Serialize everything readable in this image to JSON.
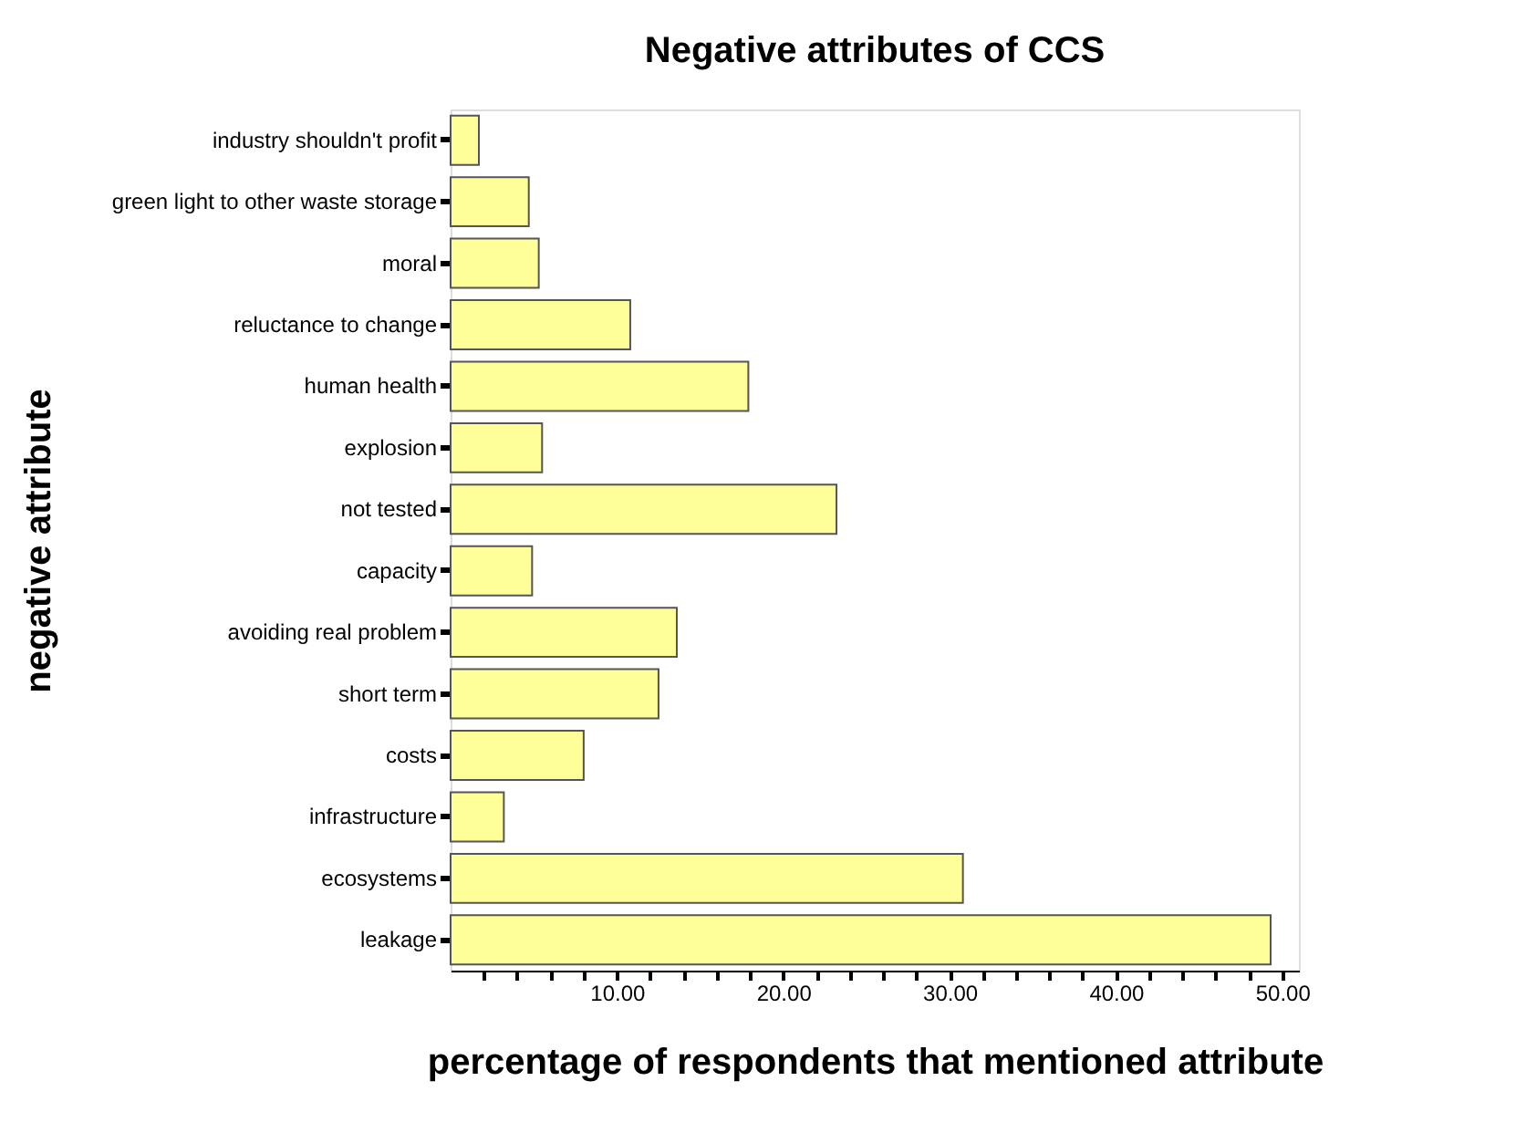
{
  "chart_data": {
    "type": "bar",
    "orientation": "horizontal",
    "title": "Negative attributes of CCS",
    "xlabel": "percentage of respondents that mentioned attribute",
    "ylabel": "negative attribute",
    "categories": [
      "industry shouldn't profit",
      "green light to other waste storage",
      "moral",
      "reluctance to change",
      "human health",
      "explosion",
      "not tested",
      "capacity",
      "avoiding real problem",
      "short term",
      "costs",
      "infrastructure",
      "ecosystems",
      "leakage"
    ],
    "values": [
      1.7,
      4.7,
      5.3,
      10.8,
      17.9,
      5.5,
      23.2,
      4.9,
      13.6,
      12.5,
      8.0,
      3.2,
      30.8,
      49.3
    ],
    "color": "#ffff99",
    "xlim": [
      0,
      51
    ],
    "xticks": [
      {
        "value": 2,
        "label": null
      },
      {
        "value": 4,
        "label": null
      },
      {
        "value": 6,
        "label": null
      },
      {
        "value": 8,
        "label": null
      },
      {
        "value": 10,
        "label": "10.00"
      },
      {
        "value": 12,
        "label": null
      },
      {
        "value": 14,
        "label": null
      },
      {
        "value": 16,
        "label": null
      },
      {
        "value": 18,
        "label": null
      },
      {
        "value": 20,
        "label": "20.00"
      },
      {
        "value": 22,
        "label": null
      },
      {
        "value": 24,
        "label": null
      },
      {
        "value": 26,
        "label": null
      },
      {
        "value": 28,
        "label": null
      },
      {
        "value": 30,
        "label": "30.00"
      },
      {
        "value": 32,
        "label": null
      },
      {
        "value": 34,
        "label": null
      },
      {
        "value": 36,
        "label": null
      },
      {
        "value": 38,
        "label": null
      },
      {
        "value": 40,
        "label": "40.00"
      },
      {
        "value": 42,
        "label": null
      },
      {
        "value": 44,
        "label": null
      },
      {
        "value": 46,
        "label": null
      },
      {
        "value": 48,
        "label": null
      },
      {
        "value": 50,
        "label": "50.00"
      }
    ],
    "grid": false
  }
}
